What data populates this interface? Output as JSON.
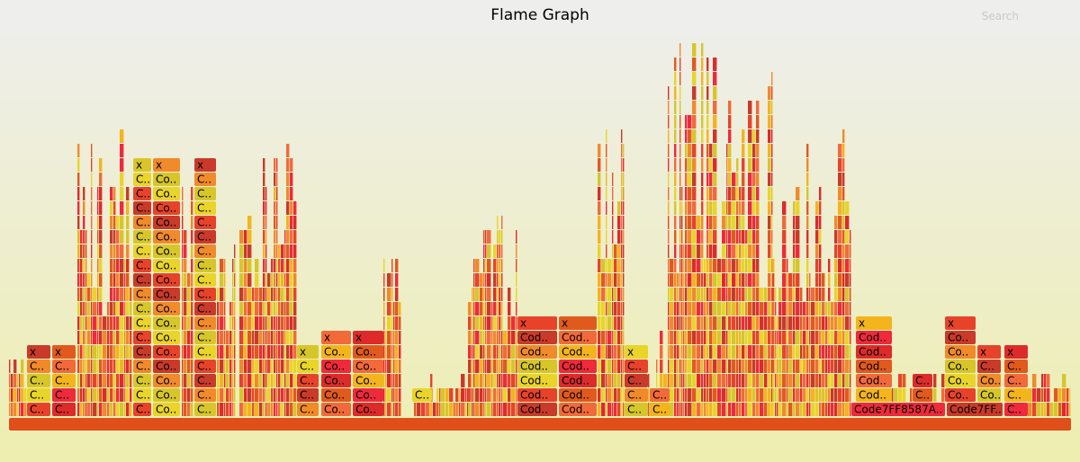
{
  "header": {
    "title": "Flame Graph",
    "search_label": "Search"
  },
  "chart_data": {
    "type": "flame",
    "title": "Flame Graph",
    "palette": [
      "#e7432b",
      "#e05a1e",
      "#f08a2a",
      "#f4b41c",
      "#e9d42a",
      "#dd2b2b",
      "#c93a2a",
      "#f26a3a",
      "#d7c62a",
      "#ee2a3c"
    ],
    "root_color": "#e04f1a",
    "frames": [
      {
        "label": "C..",
        "depth": 0,
        "start": 30,
        "width": 26
      },
      {
        "label": "C..",
        "depth": 1,
        "start": 30,
        "width": 26
      },
      {
        "label": "C..",
        "depth": 2,
        "start": 30,
        "width": 26
      },
      {
        "label": "C..",
        "depth": 3,
        "start": 30,
        "width": 26
      },
      {
        "label": "x",
        "depth": 4,
        "start": 30,
        "width": 26
      },
      {
        "label": "C..",
        "depth": 0,
        "start": 58,
        "width": 26
      },
      {
        "label": "C..",
        "depth": 1,
        "start": 58,
        "width": 26
      },
      {
        "label": "C..",
        "depth": 2,
        "start": 58,
        "width": 26
      },
      {
        "label": "C..",
        "depth": 3,
        "start": 58,
        "width": 26
      },
      {
        "label": "x",
        "depth": 4,
        "start": 58,
        "width": 26
      },
      {
        "label": "C..",
        "depth": 0,
        "start": 148,
        "width": 20
      },
      {
        "label": "C..",
        "depth": 1,
        "start": 148,
        "width": 20
      },
      {
        "label": "C..",
        "depth": 2,
        "start": 148,
        "width": 20
      },
      {
        "label": "C..",
        "depth": 3,
        "start": 148,
        "width": 20
      },
      {
        "label": "C..",
        "depth": 4,
        "start": 148,
        "width": 20
      },
      {
        "label": "C..",
        "depth": 5,
        "start": 148,
        "width": 20
      },
      {
        "label": "C..",
        "depth": 6,
        "start": 148,
        "width": 20
      },
      {
        "label": "C..",
        "depth": 7,
        "start": 148,
        "width": 20
      },
      {
        "label": "C..",
        "depth": 8,
        "start": 148,
        "width": 20
      },
      {
        "label": "C..",
        "depth": 9,
        "start": 148,
        "width": 20
      },
      {
        "label": "C..",
        "depth": 10,
        "start": 148,
        "width": 20
      },
      {
        "label": "C..",
        "depth": 11,
        "start": 148,
        "width": 20
      },
      {
        "label": "C..",
        "depth": 12,
        "start": 148,
        "width": 20
      },
      {
        "label": "C..",
        "depth": 13,
        "start": 148,
        "width": 20
      },
      {
        "label": "C..",
        "depth": 14,
        "start": 148,
        "width": 20
      },
      {
        "label": "C..",
        "depth": 15,
        "start": 148,
        "width": 20
      },
      {
        "label": "C..",
        "depth": 16,
        "start": 148,
        "width": 20
      },
      {
        "label": "x",
        "depth": 17,
        "start": 148,
        "width": 20
      },
      {
        "label": "Co..",
        "depth": 0,
        "start": 170,
        "width": 30
      },
      {
        "label": "Co..",
        "depth": 1,
        "start": 170,
        "width": 30
      },
      {
        "label": "Co..",
        "depth": 2,
        "start": 170,
        "width": 30
      },
      {
        "label": "Co..",
        "depth": 3,
        "start": 170,
        "width": 30
      },
      {
        "label": "Co..",
        "depth": 4,
        "start": 170,
        "width": 30
      },
      {
        "label": "Co..",
        "depth": 5,
        "start": 170,
        "width": 30
      },
      {
        "label": "Co..",
        "depth": 6,
        "start": 170,
        "width": 30
      },
      {
        "label": "Co..",
        "depth": 7,
        "start": 170,
        "width": 30
      },
      {
        "label": "Co..",
        "depth": 8,
        "start": 170,
        "width": 30
      },
      {
        "label": "Co..",
        "depth": 9,
        "start": 170,
        "width": 30
      },
      {
        "label": "Co..",
        "depth": 10,
        "start": 170,
        "width": 30
      },
      {
        "label": "Co..",
        "depth": 11,
        "start": 170,
        "width": 30
      },
      {
        "label": "Co..",
        "depth": 12,
        "start": 170,
        "width": 30
      },
      {
        "label": "Co..",
        "depth": 13,
        "start": 170,
        "width": 30
      },
      {
        "label": "Co..",
        "depth": 14,
        "start": 170,
        "width": 30
      },
      {
        "label": "Co..",
        "depth": 15,
        "start": 170,
        "width": 30
      },
      {
        "label": "Co..",
        "depth": 16,
        "start": 170,
        "width": 30
      },
      {
        "label": "x",
        "depth": 17,
        "start": 170,
        "width": 30
      },
      {
        "label": "C..",
        "depth": 0,
        "start": 216,
        "width": 24
      },
      {
        "label": "C..",
        "depth": 1,
        "start": 216,
        "width": 24
      },
      {
        "label": "C..",
        "depth": 2,
        "start": 216,
        "width": 24
      },
      {
        "label": "C..",
        "depth": 3,
        "start": 216,
        "width": 24
      },
      {
        "label": "C..",
        "depth": 4,
        "start": 216,
        "width": 24
      },
      {
        "label": "C..",
        "depth": 5,
        "start": 216,
        "width": 24
      },
      {
        "label": "C..",
        "depth": 6,
        "start": 216,
        "width": 24
      },
      {
        "label": "C..",
        "depth": 7,
        "start": 216,
        "width": 24
      },
      {
        "label": "C..",
        "depth": 8,
        "start": 216,
        "width": 24
      },
      {
        "label": "C..",
        "depth": 9,
        "start": 216,
        "width": 24
      },
      {
        "label": "C..",
        "depth": 10,
        "start": 216,
        "width": 24
      },
      {
        "label": "C..",
        "depth": 11,
        "start": 216,
        "width": 24
      },
      {
        "label": "C..",
        "depth": 12,
        "start": 216,
        "width": 24
      },
      {
        "label": "C..",
        "depth": 13,
        "start": 216,
        "width": 24
      },
      {
        "label": "C..",
        "depth": 14,
        "start": 216,
        "width": 24
      },
      {
        "label": "C..",
        "depth": 15,
        "start": 216,
        "width": 24
      },
      {
        "label": "C..",
        "depth": 16,
        "start": 216,
        "width": 24
      },
      {
        "label": "x",
        "depth": 17,
        "start": 216,
        "width": 24
      },
      {
        "label": "C..",
        "depth": 0,
        "start": 330,
        "width": 24
      },
      {
        "label": "C..",
        "depth": 1,
        "start": 330,
        "width": 24
      },
      {
        "label": "C..",
        "depth": 2,
        "start": 330,
        "width": 24
      },
      {
        "label": "C..",
        "depth": 3,
        "start": 330,
        "width": 24
      },
      {
        "label": "x",
        "depth": 4,
        "start": 330,
        "width": 24
      },
      {
        "label": "Co..",
        "depth": 0,
        "start": 357,
        "width": 33
      },
      {
        "label": "Co..",
        "depth": 1,
        "start": 357,
        "width": 33
      },
      {
        "label": "Co..",
        "depth": 2,
        "start": 357,
        "width": 33
      },
      {
        "label": "Co..",
        "depth": 3,
        "start": 357,
        "width": 33
      },
      {
        "label": "Co..",
        "depth": 4,
        "start": 357,
        "width": 33
      },
      {
        "label": "x",
        "depth": 5,
        "start": 357,
        "width": 33
      },
      {
        "label": "Co..",
        "depth": 0,
        "start": 392,
        "width": 34
      },
      {
        "label": "Co..",
        "depth": 1,
        "start": 392,
        "width": 34
      },
      {
        "label": "Co..",
        "depth": 2,
        "start": 392,
        "width": 34
      },
      {
        "label": "Co..",
        "depth": 3,
        "start": 392,
        "width": 34
      },
      {
        "label": "Co..",
        "depth": 4,
        "start": 392,
        "width": 34
      },
      {
        "label": "x",
        "depth": 5,
        "start": 392,
        "width": 34
      },
      {
        "label": "C..",
        "depth": 1,
        "start": 458,
        "width": 22
      },
      {
        "label": "Cod..",
        "depth": 0,
        "start": 575,
        "width": 44
      },
      {
        "label": "Cod..",
        "depth": 1,
        "start": 575,
        "width": 44
      },
      {
        "label": "Cod..",
        "depth": 2,
        "start": 575,
        "width": 44
      },
      {
        "label": "Cod..",
        "depth": 3,
        "start": 575,
        "width": 44
      },
      {
        "label": "Cod..",
        "depth": 4,
        "start": 575,
        "width": 44
      },
      {
        "label": "Cod..",
        "depth": 5,
        "start": 575,
        "width": 44
      },
      {
        "label": "x",
        "depth": 6,
        "start": 575,
        "width": 44
      },
      {
        "label": "Cod..",
        "depth": 0,
        "start": 621,
        "width": 42
      },
      {
        "label": "Cod..",
        "depth": 1,
        "start": 621,
        "width": 42
      },
      {
        "label": "Cod..",
        "depth": 2,
        "start": 621,
        "width": 42
      },
      {
        "label": "Cod..",
        "depth": 3,
        "start": 621,
        "width": 42
      },
      {
        "label": "Cod..",
        "depth": 4,
        "start": 621,
        "width": 42
      },
      {
        "label": "Cod..",
        "depth": 5,
        "start": 621,
        "width": 42
      },
      {
        "label": "x",
        "depth": 6,
        "start": 621,
        "width": 42
      },
      {
        "label": "C..",
        "depth": 0,
        "start": 694,
        "width": 26
      },
      {
        "label": "C..",
        "depth": 1,
        "start": 694,
        "width": 26
      },
      {
        "label": "C..",
        "depth": 2,
        "start": 694,
        "width": 26
      },
      {
        "label": "C..",
        "depth": 3,
        "start": 694,
        "width": 26
      },
      {
        "label": "x",
        "depth": 4,
        "start": 694,
        "width": 26
      },
      {
        "label": "C..",
        "depth": 0,
        "start": 722,
        "width": 22
      },
      {
        "label": "C..",
        "depth": 1,
        "start": 722,
        "width": 22
      },
      {
        "label": "Code7FF8587A..",
        "depth": 0,
        "start": 946,
        "width": 104
      },
      {
        "label": "Cod..",
        "depth": 1,
        "start": 951,
        "width": 40
      },
      {
        "label": "Cod..",
        "depth": 2,
        "start": 951,
        "width": 40
      },
      {
        "label": "Cod..",
        "depth": 3,
        "start": 951,
        "width": 40
      },
      {
        "label": "Cod..",
        "depth": 4,
        "start": 951,
        "width": 40
      },
      {
        "label": "Cod..",
        "depth": 5,
        "start": 951,
        "width": 40
      },
      {
        "label": "x",
        "depth": 6,
        "start": 951,
        "width": 40
      },
      {
        "label": "C..",
        "depth": 1,
        "start": 1014,
        "width": 22
      },
      {
        "label": "C..",
        "depth": 2,
        "start": 1014,
        "width": 22
      },
      {
        "label": "Code7FF..",
        "depth": 0,
        "start": 1052,
        "width": 62
      },
      {
        "label": "Co..",
        "depth": 1,
        "start": 1050,
        "width": 34
      },
      {
        "label": "Co..",
        "depth": 2,
        "start": 1050,
        "width": 34
      },
      {
        "label": "Co..",
        "depth": 3,
        "start": 1050,
        "width": 34
      },
      {
        "label": "Co..",
        "depth": 4,
        "start": 1050,
        "width": 34
      },
      {
        "label": "Co..",
        "depth": 5,
        "start": 1050,
        "width": 34
      },
      {
        "label": "x",
        "depth": 6,
        "start": 1050,
        "width": 34
      },
      {
        "label": "Co..",
        "depth": 1,
        "start": 1086,
        "width": 26
      },
      {
        "label": "Co..",
        "depth": 2,
        "start": 1086,
        "width": 26
      },
      {
        "label": "C..",
        "depth": 3,
        "start": 1086,
        "width": 26
      },
      {
        "label": "x",
        "depth": 4,
        "start": 1086,
        "width": 26
      },
      {
        "label": "C..",
        "depth": 0,
        "start": 1116,
        "width": 26
      },
      {
        "label": "C..",
        "depth": 1,
        "start": 1116,
        "width": 26
      },
      {
        "label": "C..",
        "depth": 2,
        "start": 1116,
        "width": 26
      },
      {
        "label": "C..",
        "depth": 3,
        "start": 1116,
        "width": 26
      },
      {
        "label": "x",
        "depth": 4,
        "start": 1116,
        "width": 26
      }
    ],
    "columns": [
      {
        "start": 10,
        "end": 30,
        "depth": 4
      },
      {
        "start": 86,
        "end": 147,
        "depth": 20
      },
      {
        "start": 202,
        "end": 215,
        "depth": 17
      },
      {
        "start": 241,
        "end": 262,
        "depth": 13
      },
      {
        "start": 266,
        "end": 330,
        "depth": 20
      },
      {
        "start": 426,
        "end": 446,
        "depth": 11
      },
      {
        "start": 460,
        "end": 520,
        "depth": 3
      },
      {
        "start": 520,
        "end": 575,
        "depth": 14
      },
      {
        "start": 664,
        "end": 694,
        "depth": 21
      },
      {
        "start": 720,
        "end": 742,
        "depth": 6
      },
      {
        "start": 742,
        "end": 858,
        "depth": 26
      },
      {
        "start": 858,
        "end": 946,
        "depth": 20
      },
      {
        "start": 991,
        "end": 1050,
        "depth": 3
      },
      {
        "start": 1142,
        "end": 1190,
        "depth": 3
      }
    ]
  }
}
